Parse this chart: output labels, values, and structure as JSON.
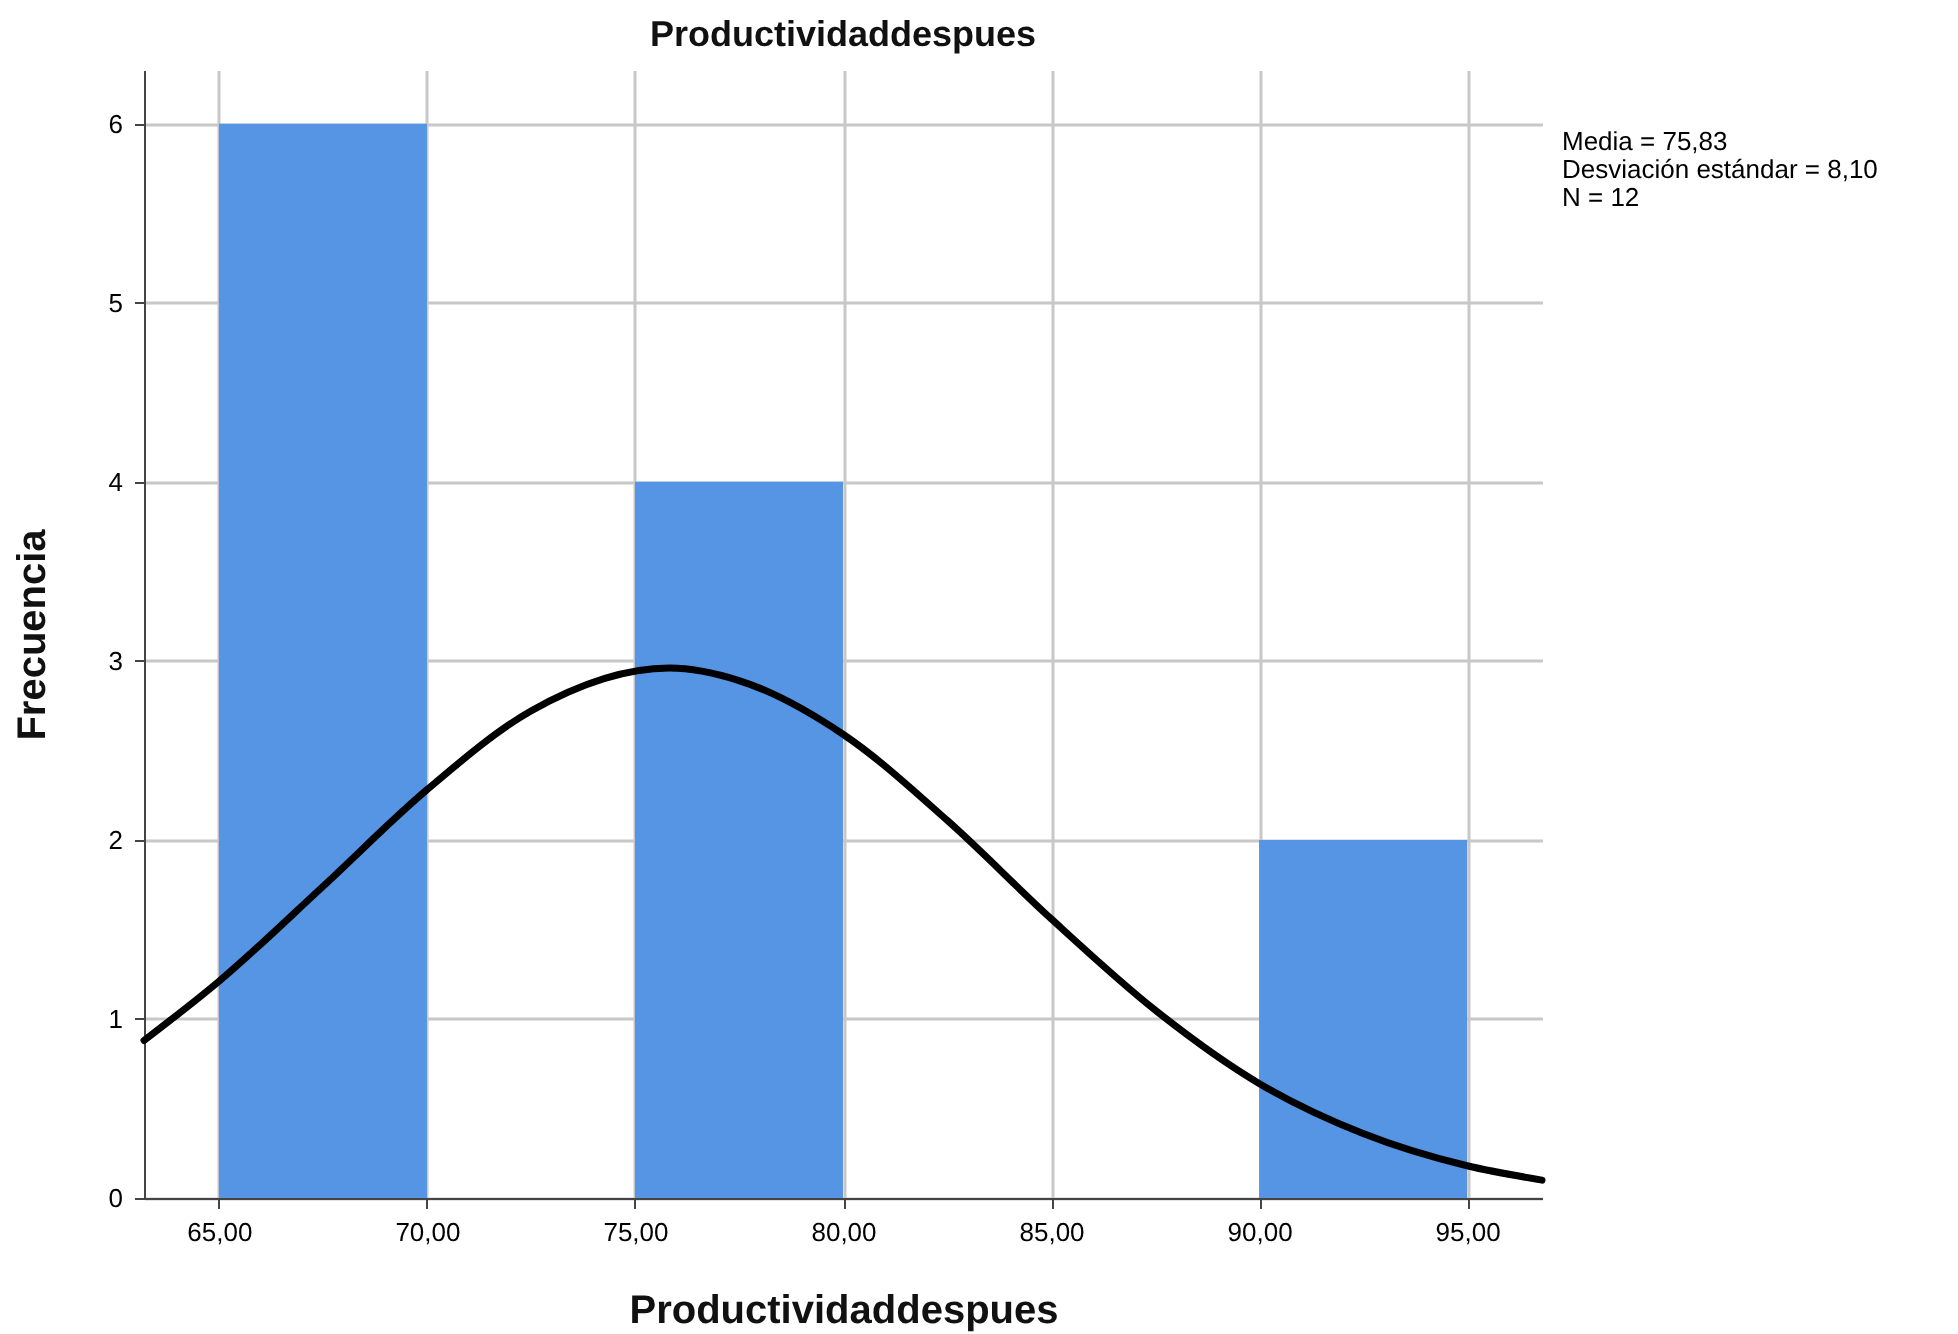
{
  "chart_data": {
    "type": "histogram",
    "title": "Productividaddespues",
    "xlabel": "Productividaddespues",
    "ylabel": "Frecuencia",
    "bins": [
      65,
      70,
      75,
      80,
      85,
      90,
      95
    ],
    "values": [
      6,
      0,
      4,
      0,
      0,
      2
    ],
    "color": "#5595e3",
    "series": [
      {
        "type": "line",
        "color": "#000000",
        "x": [
          63.2,
          65,
          67.5,
          70,
          72.5,
          75.83,
          77.5,
          80,
          82.5,
          85,
          87.5,
          90,
          92.5,
          95,
          96.8
        ],
        "values": [
          0.88,
          1.21,
          1.74,
          2.28,
          2.72,
          2.96,
          2.89,
          2.59,
          2.11,
          1.56,
          1.05,
          0.64,
          0.36,
          0.18,
          0.1
        ]
      }
    ],
    "xlim": [
      63.2,
      96.8
    ],
    "ylim": [
      0,
      6.3
    ],
    "xticks": [
      {
        "value": 65,
        "label": "65,00"
      },
      {
        "value": 70,
        "label": "70,00"
      },
      {
        "value": 75,
        "label": "75,00"
      },
      {
        "value": 80,
        "label": "80,00"
      },
      {
        "value": 85,
        "label": "85,00"
      },
      {
        "value": 90,
        "label": "90,00"
      },
      {
        "value": 95,
        "label": "95,00"
      }
    ],
    "yticks": [
      0,
      1,
      2,
      3,
      4,
      5,
      6
    ],
    "grid": true,
    "annotations": [
      "Media = 75,83",
      "Desviación estándar = 8,10",
      "N = 12"
    ]
  }
}
